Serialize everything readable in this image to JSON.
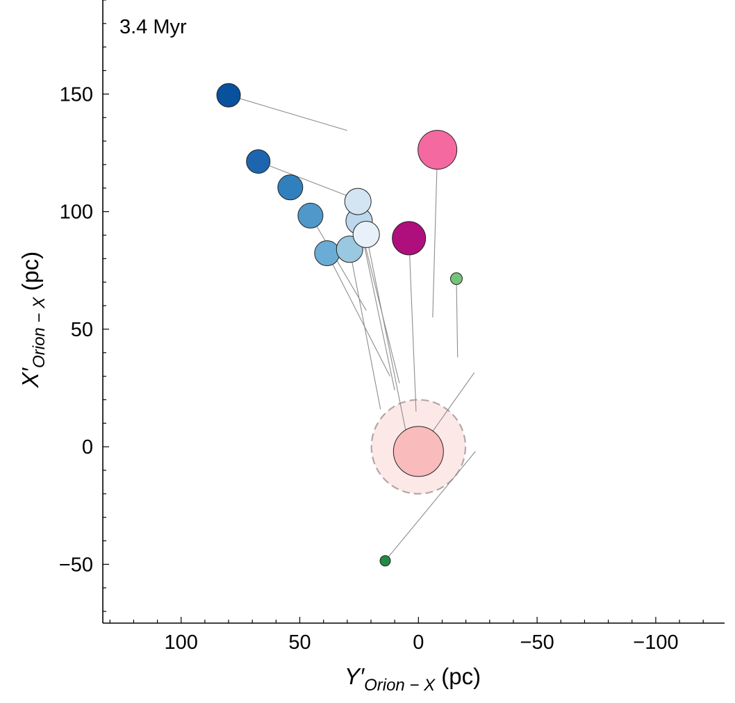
{
  "chart_data": {
    "type": "scatter",
    "annotation": "3.4 Myr",
    "xlabel": {
      "main": "Y′",
      "sub": "Orion − X",
      "unit": " (pc)"
    },
    "ylabel": {
      "main": "X′",
      "sub": "Orion − X",
      "unit": " (pc)"
    },
    "xlim": [
      133,
      -129
    ],
    "ylim": [
      -75,
      190
    ],
    "x_inverted": true,
    "xticks": [
      {
        "value": 100,
        "label": "100"
      },
      {
        "value": 50,
        "label": "50"
      },
      {
        "value": 0,
        "label": "0"
      },
      {
        "value": -50,
        "label": "−50"
      },
      {
        "value": -100,
        "label": "−100"
      }
    ],
    "yticks": [
      {
        "value": 150,
        "label": "150"
      },
      {
        "value": 100,
        "label": "100"
      },
      {
        "value": 50,
        "label": "50"
      },
      {
        "value": 0,
        "label": "0"
      },
      {
        "value": -50,
        "label": "−50"
      }
    ],
    "grid": false,
    "halo": {
      "x": 0,
      "y": 0,
      "radius_pc": 20,
      "fill": "#fde8e8",
      "stroke": "#b3a6a6"
    },
    "points": [
      {
        "x": 80.0,
        "y": 149.5,
        "size": 34,
        "color": "#08519c",
        "trail": [
          [
            30,
            134.5
          ]
        ]
      },
      {
        "x": 67.5,
        "y": 121.3,
        "size": 34,
        "color": "#1d65ae",
        "trail": [
          [
            28,
            106
          ]
        ]
      },
      {
        "x": 54.0,
        "y": 110.3,
        "size": 36,
        "color": "#3080bd",
        "trail": []
      },
      {
        "x": 45.5,
        "y": 98.3,
        "size": 36,
        "color": "#4f98c9",
        "trail": [
          [
            22,
            58
          ]
        ]
      },
      {
        "x": 38.5,
        "y": 82.3,
        "size": 36,
        "color": "#6aacd5",
        "trail": [
          [
            12,
            30
          ]
        ]
      },
      {
        "x": 29.0,
        "y": 84.0,
        "size": 38,
        "color": "#9ac8e0",
        "trail": [
          [
            16,
            16
          ]
        ]
      },
      {
        "x": 25.0,
        "y": 96.0,
        "size": 38,
        "color": "#bdd7ec",
        "trail": [
          [
            10,
            24
          ],
          [
            8,
            27
          ]
        ]
      },
      {
        "x": 25.5,
        "y": 104.3,
        "size": 38,
        "color": "#d3e4f3",
        "trail": []
      },
      {
        "x": 22.0,
        "y": 90.3,
        "size": 38,
        "color": "#e8f1fa",
        "trail": [
          [
            5,
            5
          ]
        ]
      },
      {
        "x": 4.0,
        "y": 88.7,
        "size": 48,
        "color": "#ae0f7c",
        "trail": [
          [
            1,
            15
          ]
        ]
      },
      {
        "x": -8.0,
        "y": 126.3,
        "size": 56,
        "color": "#f469a0",
        "trail": [
          [
            -6,
            55
          ]
        ]
      },
      {
        "x": -16.0,
        "y": 71.5,
        "size": 17,
        "color": "#73c476",
        "trail": [
          [
            -16.5,
            38
          ]
        ]
      },
      {
        "x": 14.0,
        "y": -48.5,
        "size": 15,
        "color": "#238b45",
        "trail": [
          [
            -24,
            -2
          ]
        ]
      },
      {
        "x": 0.0,
        "y": -2.0,
        "size": 72,
        "color": "#f9bbbb",
        "trail": [
          [
            -23.5,
            31.5
          ]
        ]
      }
    ]
  }
}
